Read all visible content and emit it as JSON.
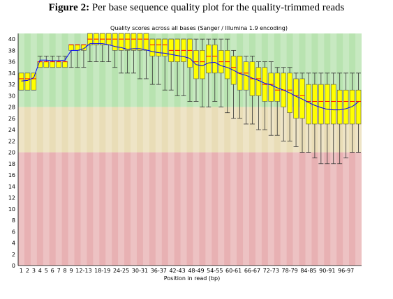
{
  "figure": {
    "label": "Figure 2:",
    "text": "Per base sequence quality plot for the quality-trimmed reads"
  },
  "chart_data": {
    "type": "boxplot",
    "title": "Quality scores across all bases (Sanger / Illumina 1.9 encoding)",
    "xlabel": "Position in read (bp)",
    "ylabel": "",
    "ylim": [
      0,
      41
    ],
    "y_ticks": [
      0,
      2,
      4,
      6,
      8,
      10,
      12,
      14,
      16,
      18,
      20,
      22,
      24,
      26,
      28,
      30,
      32,
      34,
      36,
      38,
      40
    ],
    "bands": [
      {
        "from": 28,
        "to": 41,
        "color": "#b8e3b0"
      },
      {
        "from": 20,
        "to": 28,
        "color": "#e9ddb7"
      },
      {
        "from": 0,
        "to": 20,
        "color": "#e8b1b3"
      }
    ],
    "colors": {
      "box": "#ffff00",
      "box_edge": "#555555",
      "median": "#ff0000",
      "mean": "#0000ff",
      "whisker": "#333333"
    },
    "categories": [
      "1",
      "2",
      "3",
      "4",
      "5",
      "6",
      "7",
      "8",
      "9",
      "10-11",
      "12-13",
      "14-15",
      "16-17",
      "18-19",
      "20-21",
      "22-23",
      "24-25",
      "26-27",
      "28-29",
      "30-31",
      "32-33",
      "34-35",
      "36-37",
      "38-39",
      "40-41",
      "42-43",
      "44-45",
      "46-47",
      "48-49",
      "50-51",
      "52-53",
      "54-55",
      "56-57",
      "58-59",
      "60-61",
      "62-63",
      "64-65",
      "66-67",
      "68-69",
      "70-71",
      "72-73",
      "74-75",
      "76-77",
      "78-79",
      "80-81",
      "82-83",
      "84-85",
      "86-87",
      "88-89",
      "90-91",
      "92-93",
      "94-95",
      "96-97",
      "98-99",
      "100-101"
    ],
    "x_tick_labels": [
      "1",
      "2",
      "3",
      "4",
      "5",
      "6",
      "7",
      "8",
      "9",
      "12-13",
      "18-19",
      "24-25",
      "30-31",
      "36-37",
      "42-43",
      "48-49",
      "54-55",
      "60-61",
      "66-67",
      "72-73",
      "78-79",
      "84-85",
      "90-91",
      "96-97"
    ],
    "box_q1": [
      31,
      31,
      31,
      35,
      35,
      35,
      35,
      35,
      38,
      38,
      38,
      39,
      39,
      39,
      39,
      38,
      38,
      38,
      38,
      38,
      38,
      37,
      37,
      37,
      36,
      36,
      36,
      35,
      33,
      33,
      34,
      34,
      34,
      33,
      32,
      31,
      31,
      30,
      30,
      29,
      29,
      29,
      28,
      27,
      26,
      26,
      25,
      25,
      25,
      25,
      25,
      25,
      25,
      25,
      25
    ],
    "box_q3": [
      34,
      34,
      34,
      36,
      36,
      36,
      36,
      36,
      39,
      39,
      39,
      41,
      41,
      41,
      41,
      41,
      41,
      41,
      41,
      41,
      41,
      40,
      40,
      40,
      40,
      40,
      40,
      40,
      38,
      38,
      39,
      39,
      38,
      38,
      37,
      37,
      36,
      36,
      35,
      35,
      34,
      34,
      34,
      34,
      33,
      33,
      32,
      32,
      32,
      32,
      32,
      31,
      31,
      31,
      31
    ],
    "median": [
      33,
      33,
      33,
      36,
      36,
      36,
      36,
      36,
      39,
      39,
      39,
      40,
      40,
      40,
      40,
      40,
      40,
      40,
      40,
      40,
      40,
      39,
      39,
      39,
      38,
      38,
      38,
      38,
      36,
      36,
      37,
      37,
      36,
      36,
      35,
      34,
      34,
      33,
      33,
      32,
      32,
      31,
      31,
      31,
      30,
      30,
      29,
      29,
      29,
      29,
      29,
      29,
      29,
      29,
      29
    ],
    "whisker_low": [
      31,
      31,
      31,
      35,
      35,
      35,
      35,
      35,
      35,
      35,
      35,
      36,
      36,
      36,
      36,
      35,
      34,
      34,
      34,
      33,
      33,
      32,
      32,
      31,
      31,
      30,
      30,
      29,
      29,
      28,
      28,
      29,
      28,
      27,
      26,
      26,
      25,
      25,
      24,
      24,
      23,
      23,
      22,
      22,
      21,
      20,
      20,
      19,
      18,
      18,
      18,
      18,
      19,
      20,
      20
    ],
    "whisker_high": [
      34,
      34,
      34,
      37,
      37,
      37,
      37,
      37,
      39,
      39,
      39,
      41,
      41,
      41,
      41,
      41,
      41,
      41,
      41,
      41,
      41,
      40,
      40,
      40,
      40,
      40,
      40,
      40,
      40,
      40,
      40,
      40,
      40,
      40,
      38,
      37,
      37,
      37,
      36,
      36,
      36,
      35,
      35,
      35,
      34,
      34,
      34,
      34,
      34,
      34,
      34,
      34,
      34,
      34,
      34
    ],
    "mean": [
      32.6,
      32.7,
      33.2,
      36.3,
      36.3,
      36.2,
      36.2,
      36.3,
      38.0,
      38.0,
      38.3,
      39.2,
      39.2,
      39.2,
      39.0,
      38.7,
      38.5,
      38.2,
      38.3,
      38.3,
      38.1,
      37.8,
      37.6,
      37.5,
      37.3,
      37.1,
      36.9,
      36.6,
      35.5,
      35.3,
      35.8,
      35.9,
      35.3,
      35.0,
      34.5,
      33.9,
      33.6,
      33.1,
      32.7,
      32.2,
      31.9,
      31.4,
      31.0,
      30.5,
      29.9,
      29.4,
      28.8,
      28.3,
      27.9,
      27.6,
      27.5,
      27.5,
      27.7,
      28.1,
      28.9
    ]
  }
}
